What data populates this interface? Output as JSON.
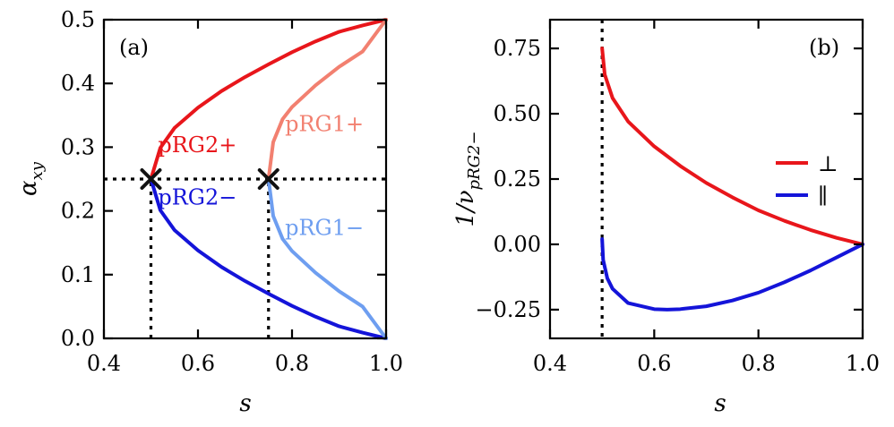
{
  "chart_data": [
    {
      "type": "line",
      "panel_label": "(a)",
      "xlabel": "s",
      "ylabel_main": "α",
      "ylabel_sub": "xy",
      "xlim": [
        0.4,
        1.0
      ],
      "ylim": [
        0.0,
        0.5
      ],
      "xticks": [
        0.4,
        0.6,
        0.8,
        1.0
      ],
      "xtick_labels": [
        "0.4",
        "0.6",
        "0.8",
        "1.0"
      ],
      "yticks": [
        0.0,
        0.1,
        0.2,
        0.3,
        0.4,
        0.5
      ],
      "ytick_labels": [
        "0.0",
        "0.1",
        "0.2",
        "0.3",
        "0.4",
        "0.5"
      ],
      "series": [
        {
          "name": "pRG2+",
          "color": "#e8161b",
          "x": [
            0.5,
            0.52,
            0.55,
            0.6,
            0.65,
            0.7,
            0.75,
            0.8,
            0.85,
            0.9,
            0.95,
            1.0
          ],
          "y": [
            0.25,
            0.299,
            0.33,
            0.362,
            0.388,
            0.41,
            0.43,
            0.449,
            0.466,
            0.481,
            0.491,
            0.5
          ]
        },
        {
          "name": "pRG2−",
          "color": "#1414d9",
          "x": [
            0.5,
            0.52,
            0.55,
            0.6,
            0.65,
            0.7,
            0.75,
            0.8,
            0.85,
            0.9,
            0.95,
            1.0
          ],
          "y": [
            0.25,
            0.201,
            0.17,
            0.138,
            0.112,
            0.09,
            0.07,
            0.051,
            0.034,
            0.019,
            0.009,
            0.0
          ]
        },
        {
          "name": "pRG1+",
          "color": "#f28070",
          "x": [
            0.75,
            0.76,
            0.78,
            0.8,
            0.85,
            0.9,
            0.95,
            1.0
          ],
          "y": [
            0.25,
            0.308,
            0.344,
            0.363,
            0.397,
            0.426,
            0.45,
            0.5
          ]
        },
        {
          "name": "pRG1−",
          "color": "#6e9ef0",
          "x": [
            0.75,
            0.76,
            0.78,
            0.8,
            0.85,
            0.9,
            0.95,
            1.0
          ],
          "y": [
            0.25,
            0.192,
            0.156,
            0.137,
            0.103,
            0.074,
            0.05,
            0.0
          ]
        }
      ],
      "markers": [
        {
          "label": "×",
          "x": 0.5,
          "y": 0.25
        },
        {
          "label": "×",
          "x": 0.75,
          "y": 0.25
        }
      ],
      "reference_lines": {
        "hline_y": 0.25,
        "vlines": [
          {
            "x": 0.5,
            "y_from": 0.0,
            "y_to": 0.25
          },
          {
            "x": 0.75,
            "y_from": 0.0,
            "y_to": 0.25
          }
        ]
      },
      "annotations": [
        {
          "text": "pRG2+",
          "color": "#e8161b",
          "x": 0.515,
          "y": 0.292
        },
        {
          "text": "pRG2−",
          "color": "#1414d9",
          "x": 0.515,
          "y": 0.21
        },
        {
          "text": "pRG1+",
          "color": "#f28070",
          "x": 0.785,
          "y": 0.325
        },
        {
          "text": "pRG1−",
          "color": "#6e9ef0",
          "x": 0.785,
          "y": 0.162
        }
      ]
    },
    {
      "type": "line",
      "panel_label": "(b)",
      "xlabel": "s",
      "ylabel_main": "1/ν",
      "ylabel_sub": "pRG2−",
      "xlim": [
        0.4,
        1.0
      ],
      "ylim": [
        -0.36,
        0.86
      ],
      "xticks": [
        0.4,
        0.6,
        0.8,
        1.0
      ],
      "xtick_labels": [
        "0.4",
        "0.6",
        "0.8",
        "1.0"
      ],
      "yticks": [
        -0.25,
        0.0,
        0.25,
        0.5,
        0.75
      ],
      "ytick_labels": [
        "−0.25",
        "0.00",
        "0.25",
        "0.50",
        "0.75"
      ],
      "legend": {
        "placement": "right",
        "entries": [
          {
            "label": "⊥",
            "color": "#e8161b"
          },
          {
            "label": "∥",
            "color": "#1414d9"
          }
        ]
      },
      "series": [
        {
          "name": "⊥",
          "color": "#e8161b",
          "x": [
            0.5,
            0.505,
            0.52,
            0.55,
            0.6,
            0.65,
            0.7,
            0.75,
            0.8,
            0.85,
            0.9,
            0.95,
            1.0
          ],
          "y": [
            0.75,
            0.65,
            0.56,
            0.47,
            0.375,
            0.3,
            0.235,
            0.18,
            0.13,
            0.09,
            0.055,
            0.025,
            0.0
          ]
        },
        {
          "name": "∥",
          "color": "#1414d9",
          "x": [
            0.5,
            0.502,
            0.51,
            0.52,
            0.55,
            0.6,
            0.625,
            0.65,
            0.7,
            0.75,
            0.8,
            0.85,
            0.9,
            0.95,
            1.0
          ],
          "y": [
            0.02,
            -0.06,
            -0.13,
            -0.17,
            -0.225,
            -0.248,
            -0.25,
            -0.248,
            -0.237,
            -0.215,
            -0.185,
            -0.145,
            -0.1,
            -0.05,
            0.0
          ]
        }
      ],
      "reference_lines": {
        "vline_x": 0.5
      }
    }
  ]
}
